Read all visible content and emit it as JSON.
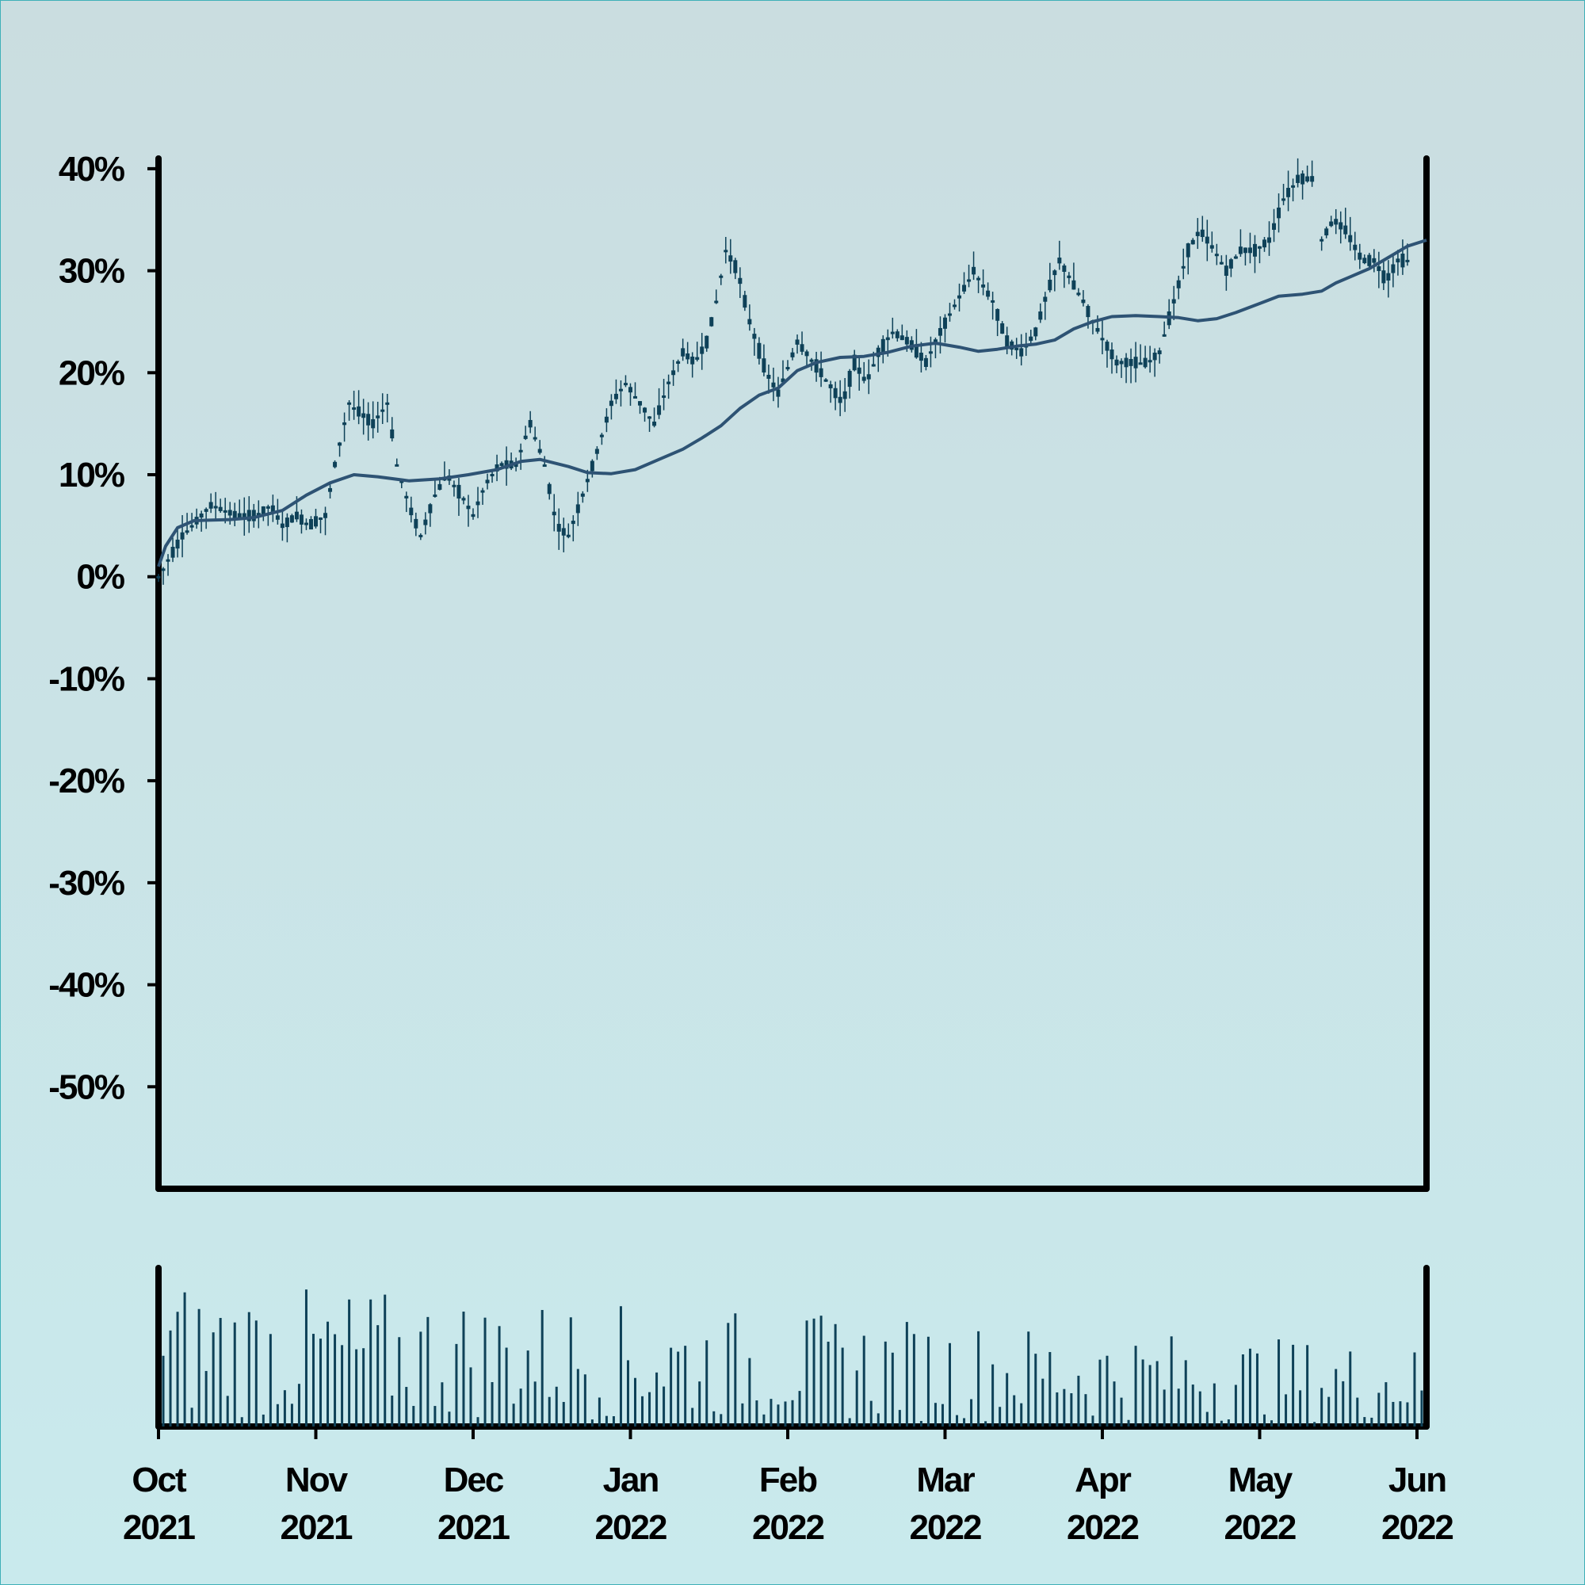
{
  "chart_data": {
    "type": "candlestick",
    "price_panel": {
      "ylim": [
        -60,
        41
      ],
      "y_ticks": [
        40,
        30,
        20,
        10,
        0,
        -10,
        -20,
        -30,
        -40,
        -50
      ],
      "y_tick_labels": [
        "40%",
        "30%",
        "20%",
        "10%",
        "0%",
        "-10%",
        "-20%",
        "-30%",
        "-40%",
        "-50%"
      ],
      "series": [
        {
          "kind": "ohlc",
          "values": [
            [
              0,
              0
            ],
            [
              10,
              4
            ],
            [
              22,
              7
            ],
            [
              33,
              6
            ],
            [
              41,
              6
            ],
            [
              47,
              7
            ],
            [
              52,
              5
            ],
            [
              58,
              6
            ],
            [
              63,
              5
            ],
            [
              70,
              6
            ],
            [
              74,
              11
            ],
            [
              80,
              17
            ],
            [
              85,
              16
            ],
            [
              90,
              15
            ],
            [
              96,
              17
            ],
            [
              100,
              11
            ],
            [
              105,
              7
            ],
            [
              110,
              4
            ],
            [
              116,
              8
            ],
            [
              121,
              10
            ],
            [
              127,
              8
            ],
            [
              132,
              6
            ],
            [
              137,
              9
            ],
            [
              143,
              11
            ],
            [
              150,
              11
            ],
            [
              156,
              15
            ],
            [
              162,
              11
            ],
            [
              167,
              5
            ],
            [
              172,
              4
            ],
            [
              178,
              8
            ],
            [
              185,
              13
            ],
            [
              190,
              17
            ],
            [
              196,
              19
            ],
            [
              202,
              17
            ],
            [
              208,
              15
            ],
            [
              214,
              19
            ],
            [
              220,
              22
            ],
            [
              225,
              21
            ],
            [
              230,
              23
            ],
            [
              234,
              27
            ],
            [
              238,
              32
            ],
            [
              243,
              30
            ],
            [
              248,
              25
            ],
            [
              255,
              20
            ],
            [
              260,
              18
            ],
            [
              268,
              23
            ],
            [
              275,
              21
            ],
            [
              281,
              19
            ],
            [
              287,
              17
            ],
            [
              292,
              21
            ],
            [
              297,
              19
            ],
            [
              302,
              22
            ],
            [
              308,
              24
            ],
            [
              315,
              23
            ],
            [
              322,
              21
            ],
            [
              328,
              24
            ],
            [
              335,
              27
            ],
            [
              342,
              30
            ],
            [
              350,
              27
            ],
            [
              356,
              23
            ],
            [
              362,
              22
            ],
            [
              368,
              24
            ],
            [
              373,
              28
            ],
            [
              378,
              31
            ],
            [
              383,
              29
            ],
            [
              388,
              27
            ],
            [
              392,
              25
            ],
            [
              397,
              23
            ],
            [
              402,
              21
            ],
            [
              408,
              21
            ],
            [
              415,
              21
            ],
            [
              420,
              22
            ],
            [
              426,
              27
            ],
            [
              432,
              32
            ],
            [
              437,
              34
            ],
            [
              443,
              32
            ],
            [
              448,
              30
            ],
            [
              454,
              32
            ],
            [
              460,
              32
            ],
            [
              466,
              33
            ],
            [
              472,
              37
            ],
            [
              478,
              39
            ],
            [
              484,
              39
            ]
          ],
          "gap_after_day": 484,
          "continue_values": [
            [
              488,
              33
            ],
            [
              493,
              35
            ],
            [
              498,
              34
            ],
            [
              505,
              31
            ],
            [
              510,
              31
            ],
            [
              515,
              29
            ],
            [
              520,
              31
            ],
            [
              524,
              31
            ]
          ]
        },
        {
          "kind": "moving_average",
          "values": [
            [
              0,
              1
            ],
            [
              3,
              3
            ],
            [
              8,
              4.8
            ],
            [
              15,
              5.5
            ],
            [
              30,
              5.6
            ],
            [
              40,
              5.8
            ],
            [
              52,
              6.5
            ],
            [
              62,
              8
            ],
            [
              72,
              9.2
            ],
            [
              82,
              10
            ],
            [
              92,
              9.8
            ],
            [
              105,
              9.4
            ],
            [
              118,
              9.6
            ],
            [
              130,
              10
            ],
            [
              142,
              10.5
            ],
            [
              152,
              11.3
            ],
            [
              160,
              11.5
            ],
            [
              172,
              10.8
            ],
            [
              180,
              10.2
            ],
            [
              190,
              10.1
            ],
            [
              200,
              10.5
            ],
            [
              210,
              11.5
            ],
            [
              220,
              12.5
            ],
            [
              228,
              13.6
            ],
            [
              236,
              14.8
            ],
            [
              244,
              16.5
            ],
            [
              252,
              17.8
            ],
            [
              260,
              18.5
            ],
            [
              268,
              20.2
            ],
            [
              276,
              21
            ],
            [
              286,
              21.5
            ],
            [
              296,
              21.6
            ],
            [
              306,
              22
            ],
            [
              316,
              22.6
            ],
            [
              326,
              22.9
            ],
            [
              336,
              22.5
            ],
            [
              344,
              22.1
            ],
            [
              352,
              22.3
            ],
            [
              360,
              22.6
            ],
            [
              368,
              22.8
            ],
            [
              376,
              23.2
            ],
            [
              384,
              24.3
            ],
            [
              392,
              25
            ],
            [
              400,
              25.5
            ],
            [
              410,
              25.6
            ],
            [
              420,
              25.5
            ],
            [
              428,
              25.4
            ],
            [
              436,
              25.1
            ],
            [
              444,
              25.3
            ],
            [
              452,
              25.9
            ],
            [
              460,
              26.6
            ],
            [
              470,
              27.5
            ],
            [
              480,
              27.7
            ],
            [
              488,
              28
            ],
            [
              494,
              28.8
            ],
            [
              500,
              29.4
            ],
            [
              508,
              30.2
            ],
            [
              516,
              31.3
            ],
            [
              524,
              32.4
            ],
            [
              532,
              33
            ]
          ]
        }
      ]
    },
    "volume_panel": {
      "type": "bar"
    },
    "x_axis": {
      "range_days": [
        0,
        532
      ],
      "ticks": [
        {
          "day": 0,
          "month": "Oct",
          "year": "2021"
        },
        {
          "day": 66,
          "month": "Nov",
          "year": "2021"
        },
        {
          "day": 132,
          "month": "Dec",
          "year": "2021"
        },
        {
          "day": 198,
          "month": "Jan",
          "year": "2022"
        },
        {
          "day": 264,
          "month": "Feb",
          "year": "2022"
        },
        {
          "day": 330,
          "month": "Mar",
          "year": "2022"
        },
        {
          "day": 396,
          "month": "Apr",
          "year": "2022"
        },
        {
          "day": 462,
          "month": "May",
          "year": "2022"
        },
        {
          "day": 528,
          "month": "Jun",
          "year": "2022"
        }
      ]
    },
    "colors": {
      "candle": "#0e4158",
      "ma_line": "#2e5374",
      "volume_bar": "#0e4158",
      "axis": "#000000"
    },
    "grid": false,
    "legend": "none"
  }
}
